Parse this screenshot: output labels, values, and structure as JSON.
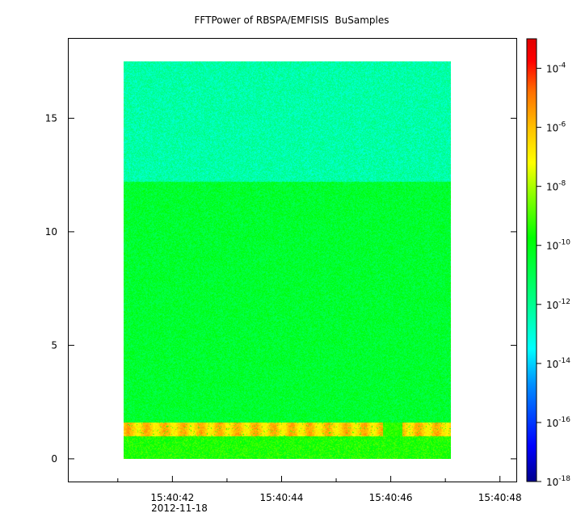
{
  "chart_data": {
    "type": "heatmap",
    "title": "FFTPower of RBSPA/EMFISIS  BuSamples",
    "xlabel": "",
    "ylabel": "",
    "x_date_label": "2012-11-18",
    "x_tick_labels": [
      "15:40:42",
      "15:40:44",
      "15:40:46",
      "15:40:48"
    ],
    "x_ticks_seconds": [
      42,
      44,
      46,
      48
    ],
    "x_minor_ticks_seconds": [
      41,
      43,
      45,
      47
    ],
    "xlim_seconds": [
      40.1,
      48.3
    ],
    "data_x_range_seconds": [
      41.1,
      47.1
    ],
    "y_ticks": [
      0,
      5,
      10,
      15
    ],
    "ylim": [
      -1,
      18.5
    ],
    "data_y_range": [
      0,
      17.5
    ],
    "colorbar": {
      "scale": "log",
      "range": [
        1e-18,
        0.001
      ],
      "tick_exponents": [
        -18,
        -16,
        -14,
        -12,
        -10,
        -8,
        -6,
        -4
      ],
      "tick_base": "10",
      "colormap": [
        "#0000a0",
        "#0000ff",
        "#0080ff",
        "#00ffff",
        "#00ff80",
        "#00ff00",
        "#80ff00",
        "#ffff00",
        "#ffc000",
        "#ff8000",
        "#ff0000",
        "#e00000"
      ]
    },
    "bands": [
      {
        "y_range": [
          12.2,
          17.5
        ],
        "log_power_mean": -12.3
      },
      {
        "y_range": [
          1.6,
          12.2
        ],
        "log_power_mean": -10.5
      },
      {
        "y_range": [
          1.0,
          1.6
        ],
        "log_power_mean": -7.0
      },
      {
        "y_range": [
          0.0,
          1.0
        ],
        "log_power_mean": -9.5
      }
    ],
    "grid": false,
    "legend": "colorbar-right"
  }
}
